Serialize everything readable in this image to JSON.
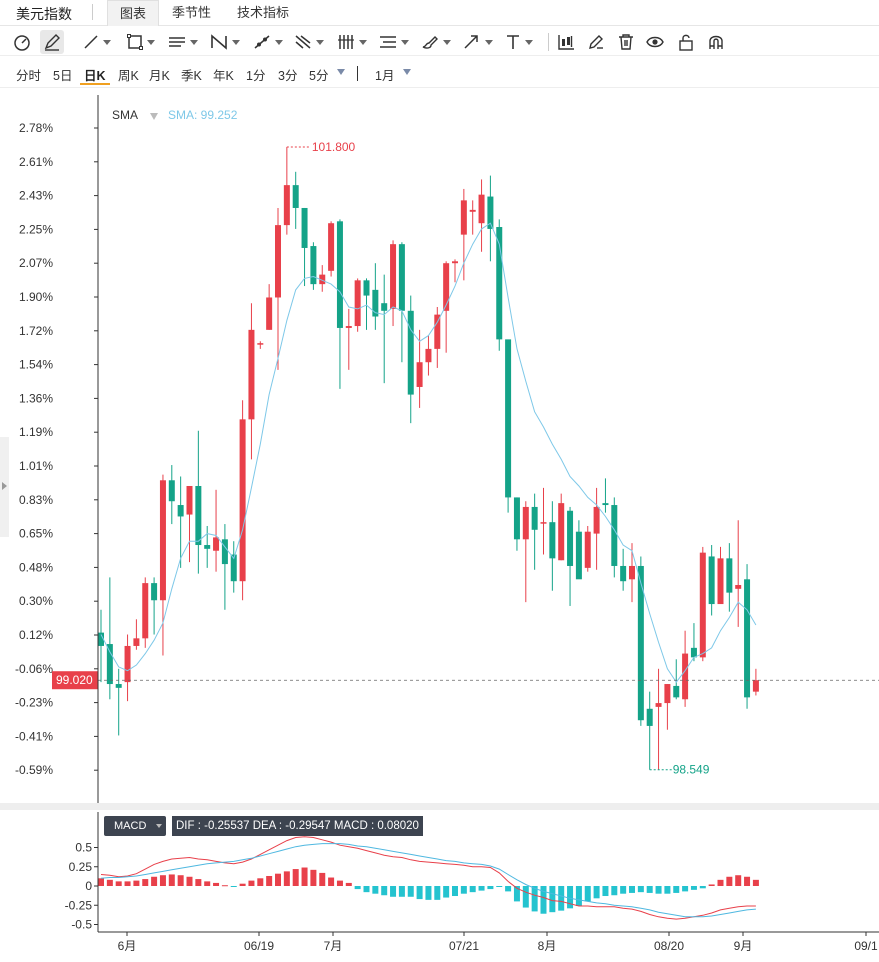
{
  "header": {
    "title": "美元指数",
    "tabs": [
      {
        "label": "图表",
        "active": true
      },
      {
        "label": "季节性",
        "active": false
      },
      {
        "label": "技术指标",
        "active": false
      }
    ]
  },
  "toolbar": {
    "icons": [
      "speedometer-icon",
      "pen-icon",
      "line-icon",
      "rectangle-icon",
      "parallel-lines-icon",
      "pattern-icon",
      "ray-icon",
      "fork-icon",
      "vertical-lines-icon",
      "fib-lines-icon",
      "brush-icon",
      "arrow-icon",
      "text-icon",
      "candles-icon",
      "pencil-icon",
      "trash-icon",
      "eye-icon",
      "unlock-icon",
      "magnet-icon"
    ]
  },
  "periods": {
    "items": [
      "分时",
      "5日",
      "日K",
      "周K",
      "月K",
      "季K",
      "年K",
      "1分",
      "3分",
      "5分"
    ],
    "active": "日K",
    "range": "1月"
  },
  "indicator": {
    "name": "SMA",
    "value_text": "SMA: 99.252",
    "sma_color": "#7ec8e8"
  },
  "macd": {
    "label": "MACD",
    "values_text": "DIF : -0.25537   DEA : -0.29547   MACD : 0.08020",
    "dif_color": "#e8404a",
    "dea_color": "#4fb8e0"
  },
  "colors": {
    "up": "#e8404a",
    "down": "#14a388"
  },
  "chart_data": {
    "type": "candlestick",
    "y_axis_ticks": [
      "2.78%",
      "2.61%",
      "2.43%",
      "2.25%",
      "2.07%",
      "1.90%",
      "1.72%",
      "1.54%",
      "1.36%",
      "1.19%",
      "1.01%",
      "0.83%",
      "0.65%",
      "0.48%",
      "0.30%",
      "0.12%",
      "-0.06%",
      "-0.23%",
      "-0.41%",
      "-0.59%"
    ],
    "ylim_pct": [
      -0.59,
      2.78
    ],
    "x_axis_labels": [
      "6月",
      "06/19",
      "7月",
      "07/21",
      "8月",
      "08/20",
      "9月",
      "09/1"
    ],
    "last_price": "99.020",
    "high_label": "101.800",
    "low_label": "98.549",
    "candles": [
      [
        0.13,
        0.06,
        0.25,
        -0.13
      ],
      [
        0.07,
        -0.14,
        0.42,
        -0.22
      ],
      [
        -0.14,
        -0.16,
        -0.06,
        -0.41
      ],
      [
        -0.13,
        0.06,
        0.12,
        -0.23
      ],
      [
        0.06,
        0.1,
        0.2,
        0.04
      ],
      [
        0.1,
        0.39,
        0.42,
        0.05
      ],
      [
        0.39,
        0.3,
        0.42,
        0.12
      ],
      [
        0.3,
        0.93,
        0.96,
        0.01
      ],
      [
        0.93,
        0.82,
        1.01,
        0.7
      ],
      [
        0.8,
        0.74,
        0.95,
        0.47
      ],
      [
        0.75,
        0.9,
        0.9,
        0.5
      ],
      [
        0.9,
        0.59,
        1.19,
        0.44
      ],
      [
        0.59,
        0.57,
        0.69,
        0.47
      ],
      [
        0.56,
        0.63,
        0.88,
        0.45
      ],
      [
        0.62,
        0.49,
        0.7,
        0.25
      ],
      [
        0.54,
        0.4,
        0.61,
        0.34
      ],
      [
        0.4,
        1.25,
        1.35,
        0.3
      ],
      [
        1.25,
        1.72,
        1.86,
        1.04
      ],
      [
        1.65,
        1.65,
        1.66,
        1.62
      ],
      [
        1.72,
        1.89,
        1.96,
        1.72
      ],
      [
        1.89,
        2.27,
        2.36,
        1.51
      ],
      [
        2.27,
        2.48,
        2.68,
        2.22
      ],
      [
        2.48,
        2.36,
        2.55,
        2.25
      ],
      [
        2.36,
        2.15,
        2.36,
        1.95
      ],
      [
        2.16,
        1.96,
        2.18,
        1.93
      ],
      [
        1.96,
        2.01,
        2.06,
        1.92
      ],
      [
        2.03,
        2.28,
        2.29,
        2.0
      ],
      [
        2.29,
        1.73,
        2.3,
        1.41
      ],
      [
        1.73,
        1.74,
        1.83,
        1.51
      ],
      [
        1.74,
        1.98,
        1.99,
        1.71
      ],
      [
        1.98,
        1.9,
        1.99,
        1.72
      ],
      [
        1.93,
        1.79,
        2.07,
        1.72
      ],
      [
        1.86,
        1.82,
        2.01,
        1.44
      ],
      [
        1.83,
        2.17,
        2.19,
        1.74
      ],
      [
        2.17,
        1.82,
        2.18,
        1.55
      ],
      [
        1.82,
        1.38,
        1.9,
        1.23
      ],
      [
        1.42,
        1.55,
        1.72,
        1.31
      ],
      [
        1.55,
        1.62,
        1.69,
        1.48
      ],
      [
        1.62,
        1.8,
        1.84,
        1.52
      ],
      [
        1.82,
        2.07,
        2.08,
        1.6
      ],
      [
        2.07,
        2.08,
        2.09,
        1.97
      ],
      [
        2.22,
        2.4,
        2.46,
        1.98
      ],
      [
        2.34,
        2.35,
        2.4,
        2.22
      ],
      [
        2.28,
        2.43,
        2.51,
        2.13
      ],
      [
        2.42,
        2.25,
        2.53,
        2.08
      ],
      [
        2.26,
        1.67,
        2.3,
        1.61
      ],
      [
        1.67,
        0.84,
        1.62,
        0.76
      ],
      [
        0.84,
        0.62,
        0.84,
        0.56
      ],
      [
        0.62,
        0.79,
        0.82,
        0.29
      ],
      [
        0.79,
        0.67,
        0.86,
        0.46
      ],
      [
        0.71,
        0.71,
        0.89,
        0.54
      ],
      [
        0.71,
        0.52,
        0.82,
        0.35
      ],
      [
        0.51,
        0.81,
        0.86,
        0.51
      ],
      [
        0.77,
        0.48,
        0.79,
        0.27
      ],
      [
        0.66,
        0.41,
        0.72,
        0.44
      ],
      [
        0.47,
        0.66,
        0.69,
        0.45
      ],
      [
        0.65,
        0.79,
        0.89,
        0.46
      ],
      [
        0.81,
        0.8,
        0.94,
        0.76
      ],
      [
        0.8,
        0.48,
        0.84,
        0.42
      ],
      [
        0.48,
        0.4,
        0.57,
        0.35
      ],
      [
        0.41,
        0.48,
        0.6,
        0.29
      ],
      [
        0.48,
        -0.33,
        0.53,
        -0.36
      ],
      [
        -0.27,
        -0.36,
        -0.18,
        -0.59
      ],
      [
        -0.26,
        -0.24,
        -0.06,
        -0.59
      ],
      [
        -0.24,
        -0.14,
        -0.14,
        -0.38
      ],
      [
        -0.15,
        -0.21,
        -0.01,
        -0.22
      ],
      [
        -0.22,
        0.02,
        0.14,
        -0.26
      ],
      [
        0.05,
        0.0,
        0.18,
        -0.02
      ],
      [
        0.0,
        0.55,
        0.58,
        -0.02
      ],
      [
        0.53,
        0.28,
        0.59,
        0.22
      ],
      [
        0.28,
        0.52,
        0.58,
        0.28
      ],
      [
        0.52,
        0.34,
        0.6,
        0.24
      ],
      [
        0.36,
        0.38,
        0.72,
        0.16
      ],
      [
        0.41,
        -0.21,
        0.49,
        -0.27
      ],
      [
        -0.18,
        -0.12,
        -0.06,
        -0.2
      ]
    ],
    "sma": [
      0.12,
      0.03,
      -0.05,
      -0.07,
      -0.04,
      0.02,
      0.09,
      0.18,
      0.36,
      0.52,
      0.61,
      0.61,
      0.65,
      0.64,
      0.58,
      0.52,
      0.67,
      0.89,
      1.12,
      1.38,
      1.57,
      1.77,
      1.93,
      1.99,
      2.0,
      1.98,
      1.96,
      1.92,
      1.84,
      1.83,
      1.85,
      1.81,
      1.8,
      1.84,
      1.82,
      1.72,
      1.66,
      1.69,
      1.76,
      1.85,
      1.95,
      2.07,
      2.17,
      2.25,
      2.28,
      2.17,
      1.89,
      1.62,
      1.45,
      1.29,
      1.21,
      1.12,
      1.04,
      0.95,
      0.9,
      0.84,
      0.8,
      0.74,
      0.67,
      0.59,
      0.56,
      0.39,
      0.23,
      0.08,
      -0.06,
      -0.13,
      -0.07,
      0.0,
      0.02,
      0.05,
      0.14,
      0.21,
      0.29,
      0.25,
      0.17
    ],
    "macd_dif": [
      0.15,
      0.14,
      0.12,
      0.13,
      0.16,
      0.22,
      0.28,
      0.32,
      0.35,
      0.36,
      0.37,
      0.35,
      0.34,
      0.32,
      0.3,
      0.29,
      0.31,
      0.35,
      0.41,
      0.47,
      0.53,
      0.59,
      0.63,
      0.64,
      0.63,
      0.6,
      0.57,
      0.53,
      0.51,
      0.49,
      0.46,
      0.43,
      0.4,
      0.38,
      0.37,
      0.34,
      0.32,
      0.31,
      0.3,
      0.29,
      0.28,
      0.27,
      0.25,
      0.25,
      0.24,
      0.17,
      0.06,
      -0.03,
      -0.08,
      -0.12,
      -0.15,
      -0.19,
      -0.2,
      -0.23,
      -0.26,
      -0.26,
      -0.27,
      -0.27,
      -0.27,
      -0.29,
      -0.3,
      -0.33,
      -0.37,
      -0.4,
      -0.42,
      -0.43,
      -0.42,
      -0.4,
      -0.38,
      -0.35,
      -0.31,
      -0.29,
      -0.27,
      -0.26,
      -0.26
    ],
    "macd_dea": [
      0.1,
      0.11,
      0.11,
      0.12,
      0.13,
      0.15,
      0.17,
      0.19,
      0.21,
      0.23,
      0.25,
      0.27,
      0.29,
      0.3,
      0.31,
      0.32,
      0.34,
      0.36,
      0.39,
      0.42,
      0.45,
      0.48,
      0.51,
      0.53,
      0.54,
      0.55,
      0.55,
      0.55,
      0.54,
      0.52,
      0.51,
      0.49,
      0.47,
      0.45,
      0.43,
      0.41,
      0.39,
      0.37,
      0.35,
      0.33,
      0.32,
      0.3,
      0.29,
      0.28,
      0.26,
      0.22,
      0.15,
      0.08,
      0.02,
      -0.03,
      -0.07,
      -0.1,
      -0.13,
      -0.16,
      -0.18,
      -0.2,
      -0.22,
      -0.23,
      -0.25,
      -0.26,
      -0.27,
      -0.29,
      -0.31,
      -0.34,
      -0.36,
      -0.38,
      -0.4,
      -0.4,
      -0.4,
      -0.39,
      -0.37,
      -0.35,
      -0.33,
      -0.31,
      -0.3
    ],
    "macd_hist": [
      0.1,
      0.08,
      0.06,
      0.06,
      0.07,
      0.09,
      0.12,
      0.14,
      0.15,
      0.14,
      0.12,
      0.09,
      0.06,
      0.04,
      0.01,
      -0.01,
      0.03,
      0.07,
      0.1,
      0.13,
      0.16,
      0.19,
      0.22,
      0.24,
      0.21,
      0.17,
      0.11,
      0.07,
      0.04,
      -0.04,
      -0.08,
      -0.1,
      -0.12,
      -0.14,
      -0.14,
      -0.14,
      -0.17,
      -0.18,
      -0.18,
      -0.15,
      -0.13,
      -0.1,
      -0.08,
      -0.06,
      -0.04,
      -0.01,
      -0.07,
      -0.2,
      -0.28,
      -0.33,
      -0.36,
      -0.34,
      -0.32,
      -0.29,
      -0.26,
      -0.2,
      -0.16,
      -0.13,
      -0.12,
      -0.1,
      -0.09,
      -0.08,
      -0.09,
      -0.1,
      -0.1,
      -0.09,
      -0.07,
      -0.05,
      -0.03,
      0.02,
      0.08,
      0.12,
      0.14,
      0.12,
      0.08
    ]
  }
}
